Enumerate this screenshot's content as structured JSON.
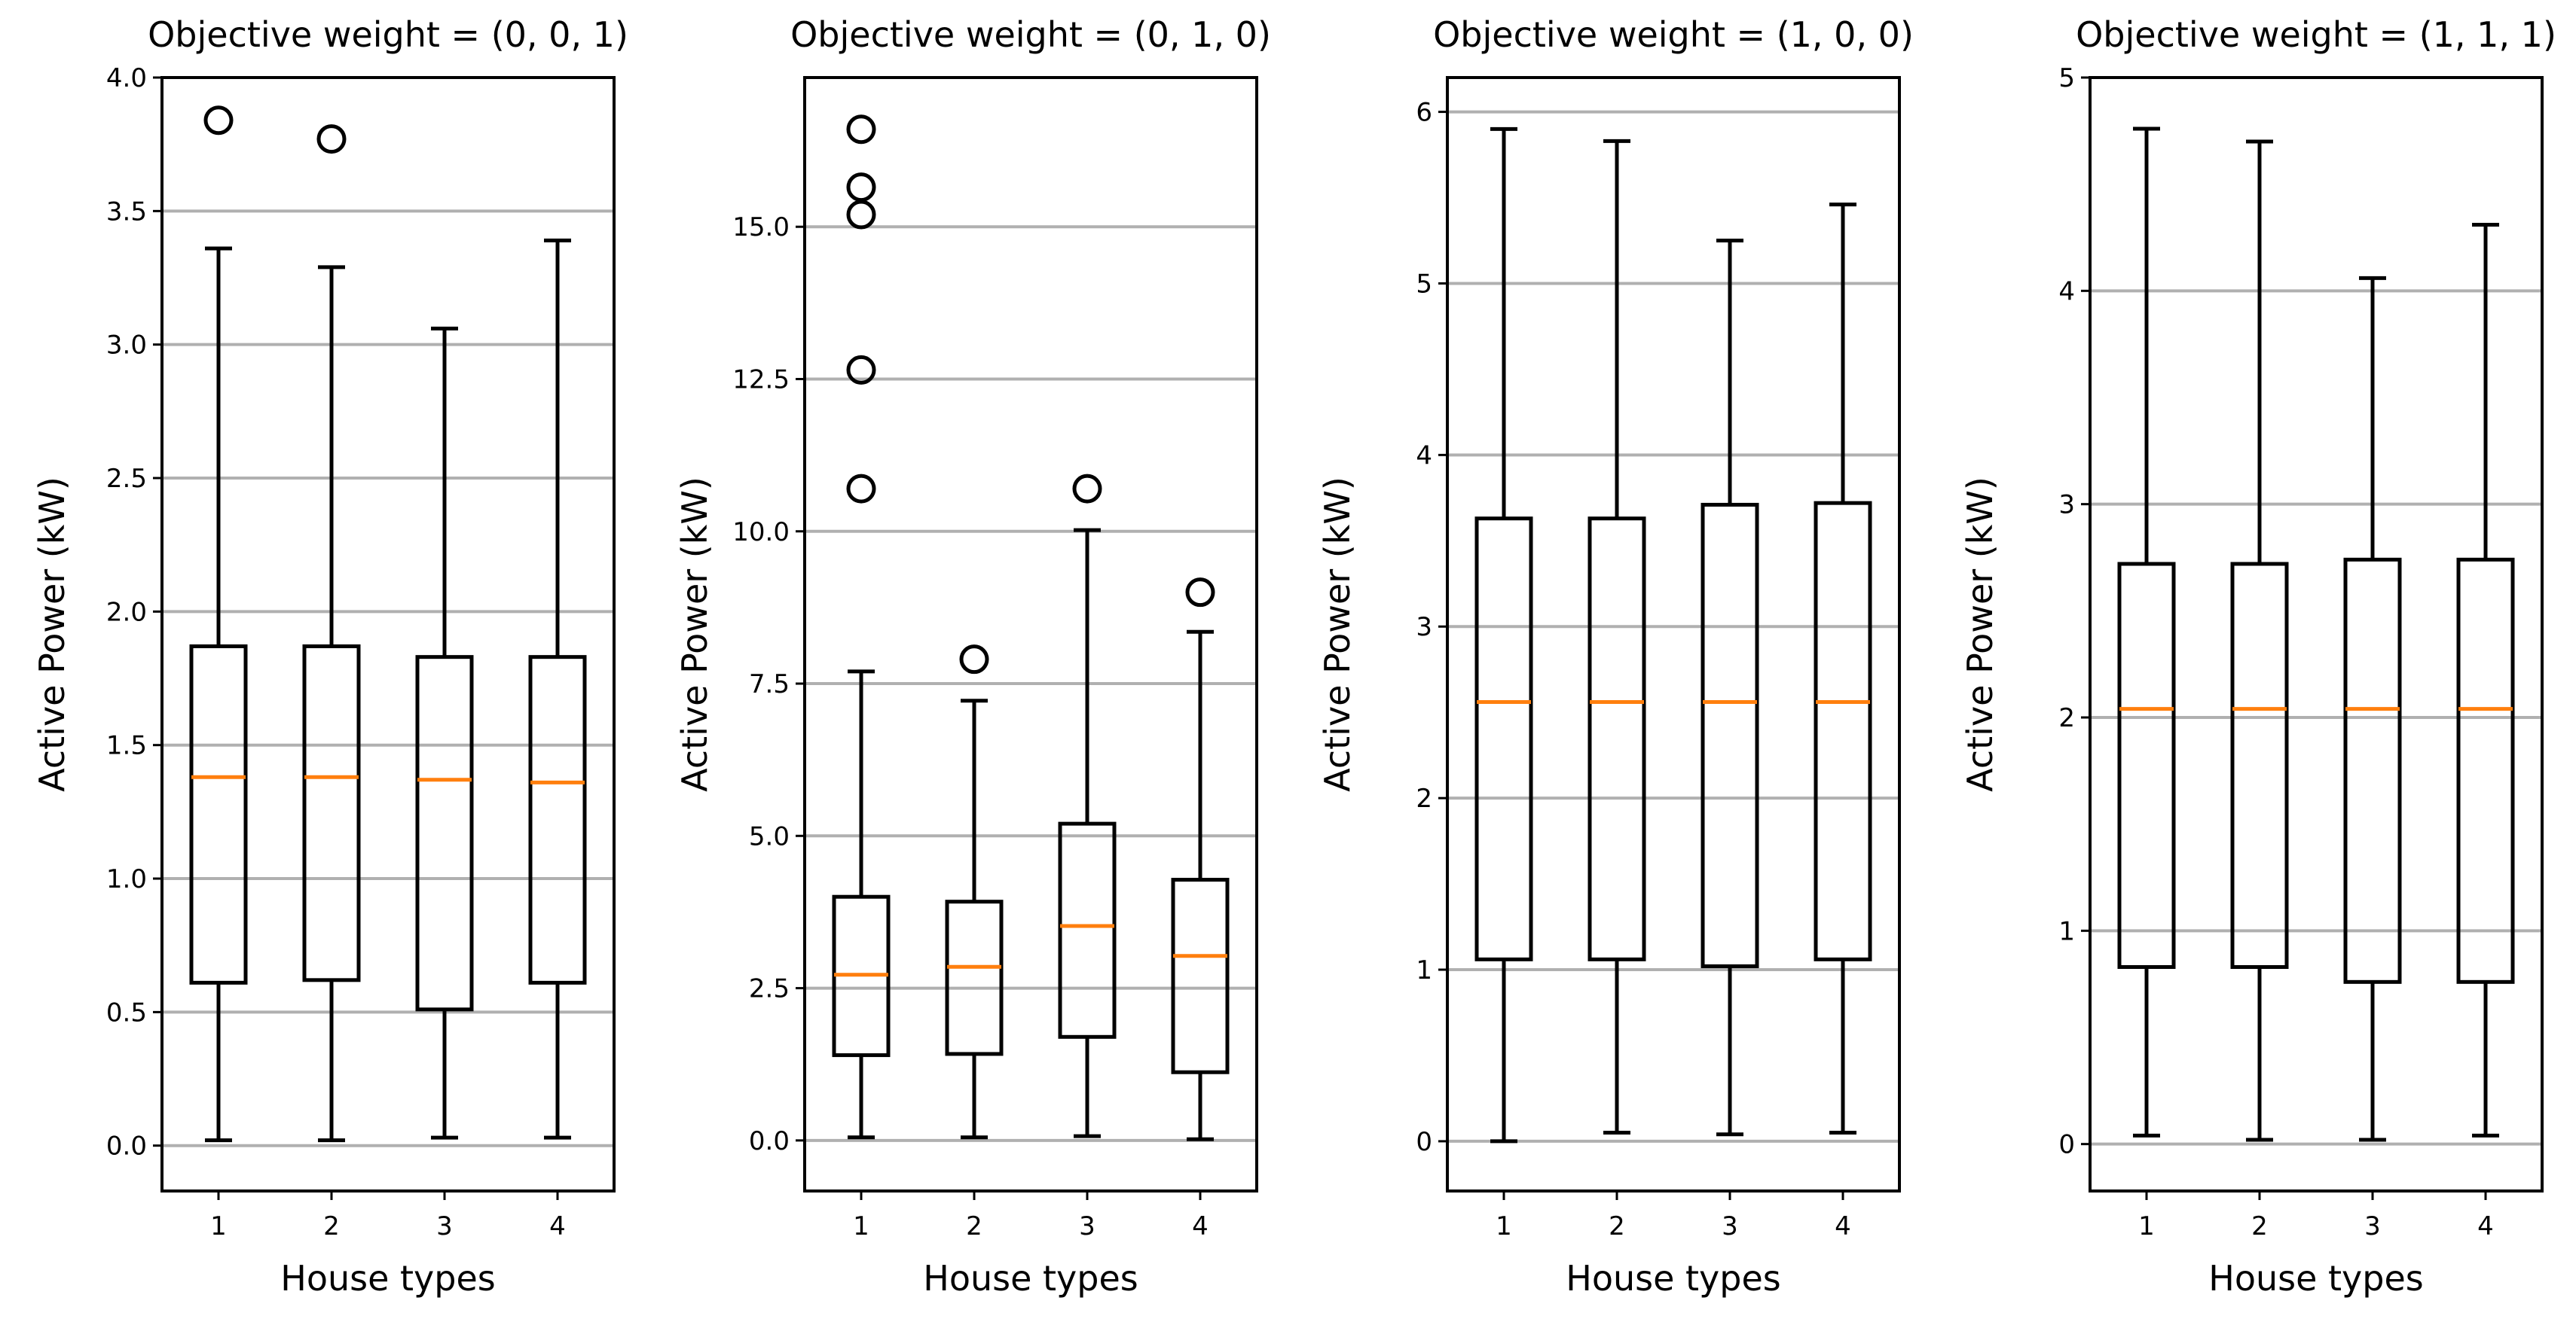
{
  "figure": {
    "description_free": true,
    "colors": {
      "box": "#000000",
      "median": "#ff7f0e",
      "grid": "#b0b0b0",
      "background": "#ffffff"
    }
  },
  "chart_data": [
    {
      "type": "box",
      "title": "Objective weight = (0, 0, 1)",
      "xlabel": "House types",
      "ylabel": "Active Power (kW)",
      "categories": [
        "1",
        "2",
        "3",
        "4"
      ],
      "ylim": [
        -0.17,
        4.0
      ],
      "yticks": [
        0.0,
        0.5,
        1.0,
        1.5,
        2.0,
        2.5,
        3.0,
        3.5,
        4.0
      ],
      "ytick_labels": [
        "0.0",
        "0.5",
        "1.0",
        "1.5",
        "2.0",
        "2.5",
        "3.0",
        "3.5",
        "4.0"
      ],
      "grid": "y",
      "boxes": [
        {
          "whislo": 0.02,
          "q1": 0.61,
          "med": 1.38,
          "q3": 1.87,
          "whishi": 3.36,
          "fliers": [
            3.84
          ]
        },
        {
          "whislo": 0.02,
          "q1": 0.62,
          "med": 1.38,
          "q3": 1.87,
          "whishi": 3.29,
          "fliers": [
            3.77
          ]
        },
        {
          "whislo": 0.03,
          "q1": 0.51,
          "med": 1.37,
          "q3": 1.83,
          "whishi": 3.06,
          "fliers": []
        },
        {
          "whislo": 0.03,
          "q1": 0.61,
          "med": 1.36,
          "q3": 1.83,
          "whishi": 3.39,
          "fliers": []
        }
      ]
    },
    {
      "type": "box",
      "title": "Objective weight = (0, 1, 0)",
      "xlabel": "House types",
      "ylabel": "Active Power (kW)",
      "categories": [
        "1",
        "2",
        "3",
        "4"
      ],
      "ylim": [
        -0.83,
        17.45
      ],
      "yticks": [
        0.0,
        2.5,
        5.0,
        7.5,
        10.0,
        12.5,
        15.0
      ],
      "ytick_labels": [
        "0.0",
        "2.5",
        "5.0",
        "7.5",
        "10.0",
        "12.5",
        "15.0"
      ],
      "grid": "y",
      "boxes": [
        {
          "whislo": 0.05,
          "q1": 1.4,
          "med": 2.72,
          "q3": 4.0,
          "whishi": 7.7,
          "fliers": [
            10.7,
            12.65,
            15.2,
            15.65,
            16.6
          ]
        },
        {
          "whislo": 0.05,
          "q1": 1.42,
          "med": 2.85,
          "q3": 3.92,
          "whishi": 7.22,
          "fliers": [
            7.9
          ]
        },
        {
          "whislo": 0.07,
          "q1": 1.7,
          "med": 3.52,
          "q3": 5.2,
          "whishi": 10.02,
          "fliers": [
            10.7
          ]
        },
        {
          "whislo": 0.02,
          "q1": 1.12,
          "med": 3.03,
          "q3": 4.28,
          "whishi": 8.35,
          "fliers": [
            9.0
          ]
        }
      ]
    },
    {
      "type": "box",
      "title": "Objective weight = (1, 0, 0)",
      "xlabel": "House types",
      "ylabel": "Active Power (kW)",
      "categories": [
        "1",
        "2",
        "3",
        "4"
      ],
      "ylim": [
        -0.29,
        6.2
      ],
      "yticks": [
        0,
        1,
        2,
        3,
        4,
        5,
        6
      ],
      "ytick_labels": [
        "0",
        "1",
        "2",
        "3",
        "4",
        "5",
        "6"
      ],
      "grid": "y",
      "boxes": [
        {
          "whislo": 0.0,
          "q1": 1.06,
          "med": 2.56,
          "q3": 3.63,
          "whishi": 5.9,
          "fliers": []
        },
        {
          "whislo": 0.05,
          "q1": 1.06,
          "med": 2.56,
          "q3": 3.63,
          "whishi": 5.83,
          "fliers": []
        },
        {
          "whislo": 0.04,
          "q1": 1.02,
          "med": 2.56,
          "q3": 3.71,
          "whishi": 5.25,
          "fliers": []
        },
        {
          "whislo": 0.05,
          "q1": 1.06,
          "med": 2.56,
          "q3": 3.72,
          "whishi": 5.46,
          "fliers": []
        }
      ]
    },
    {
      "type": "box",
      "title": "Objective weight = (1, 1, 1)",
      "xlabel": "House types",
      "ylabel": "Active Power (kW)",
      "categories": [
        "1",
        "2",
        "3",
        "4"
      ],
      "ylim": [
        -0.22,
        5.0
      ],
      "yticks": [
        0,
        1,
        2,
        3,
        4,
        5
      ],
      "ytick_labels": [
        "0",
        "1",
        "2",
        "3",
        "4",
        "5"
      ],
      "grid": "y",
      "boxes": [
        {
          "whislo": 0.04,
          "q1": 0.83,
          "med": 2.04,
          "q3": 2.72,
          "whishi": 4.76,
          "fliers": []
        },
        {
          "whislo": 0.02,
          "q1": 0.83,
          "med": 2.04,
          "q3": 2.72,
          "whishi": 4.7,
          "fliers": []
        },
        {
          "whislo": 0.02,
          "q1": 0.76,
          "med": 2.04,
          "q3": 2.74,
          "whishi": 4.06,
          "fliers": []
        },
        {
          "whislo": 0.04,
          "q1": 0.76,
          "med": 2.04,
          "q3": 2.74,
          "whishi": 4.31,
          "fliers": []
        }
      ]
    }
  ]
}
